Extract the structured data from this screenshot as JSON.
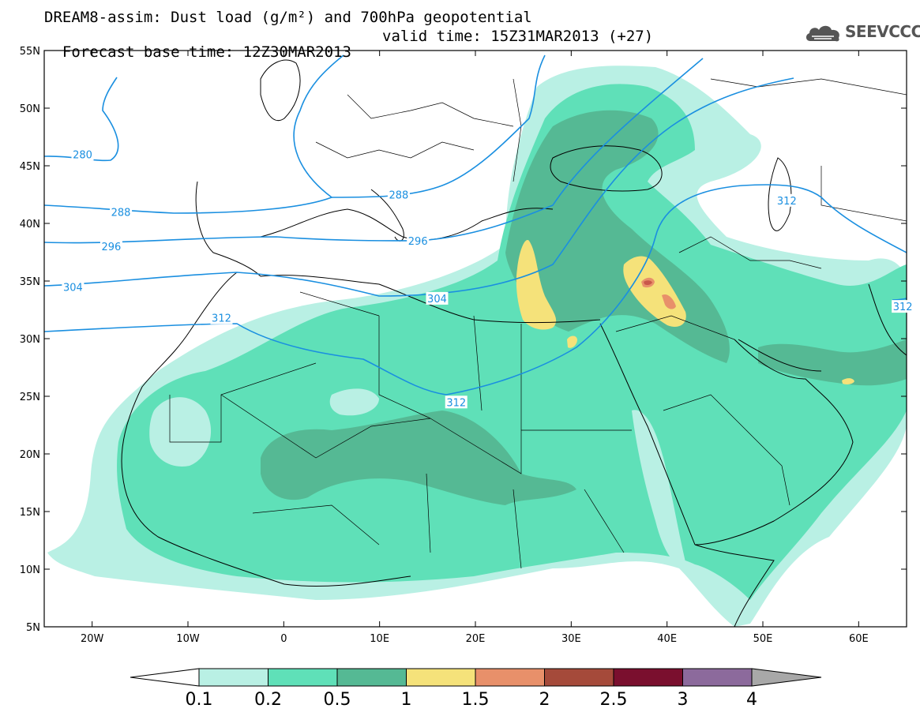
{
  "title": {
    "line1": "DREAM8-assim: Dust load (g/m²) and 700hPa geopotential",
    "line2_base": "Forecast base time: 12Z30MAR2013",
    "line2_valid": "valid time: 15Z31MAR2013 (+27)"
  },
  "brand": {
    "name": "SEEVCCC",
    "icon": "cloud-logo-icon"
  },
  "axes": {
    "lat_labels": [
      "55N",
      "50N",
      "45N",
      "40N",
      "35N",
      "30N",
      "25N",
      "20N",
      "15N",
      "10N",
      "5N"
    ],
    "lat_values": [
      55,
      50,
      45,
      40,
      35,
      30,
      25,
      20,
      15,
      10,
      5
    ],
    "lon_labels": [
      "20W",
      "10W",
      "0",
      "10E",
      "20E",
      "30E",
      "40E",
      "50E",
      "60E"
    ],
    "lon_values": [
      -20,
      -10,
      0,
      10,
      20,
      30,
      40,
      50,
      60
    ],
    "lon_range": [
      -25,
      65
    ],
    "lat_range": [
      5,
      55
    ]
  },
  "contours": {
    "color": "#1a8fe0",
    "labels": [
      {
        "text": "280",
        "lon": -21,
        "lat": 46
      },
      {
        "text": "288",
        "lon": -17,
        "lat": 41
      },
      {
        "text": "288",
        "lon": 12,
        "lat": 42.5
      },
      {
        "text": "296",
        "lon": -18,
        "lat": 38
      },
      {
        "text": "296",
        "lon": 14,
        "lat": 38.5
      },
      {
        "text": "304",
        "lon": -22,
        "lat": 34.5
      },
      {
        "text": "304",
        "lon": 16,
        "lat": 33.5
      },
      {
        "text": "312",
        "lon": -6.5,
        "lat": 31.8
      },
      {
        "text": "312",
        "lon": 18,
        "lat": 24.5
      },
      {
        "text": "312",
        "lon": 52.5,
        "lat": 42
      },
      {
        "text": "312",
        "lon": 64.6,
        "lat": 32.8
      }
    ]
  },
  "colorbar": {
    "levels": [
      "0.1",
      "0.2",
      "0.5",
      "1",
      "1.5",
      "2",
      "2.5",
      "3",
      "4"
    ],
    "colors": [
      "#b9f0e4",
      "#5fe0b8",
      "#55b994",
      "#f5e27a",
      "#e8906a",
      "#a54a3a",
      "#7a0f2e",
      "#8c6a9c"
    ],
    "under_color": "#ffffff",
    "over_color": "#a8a8a8"
  },
  "dust_colors": {
    "c1": "#b9f0e4",
    "c2": "#5fe0b8",
    "c3": "#55b994",
    "c4": "#f5e27a",
    "c5": "#e8906a",
    "c6": "#c9584a"
  }
}
